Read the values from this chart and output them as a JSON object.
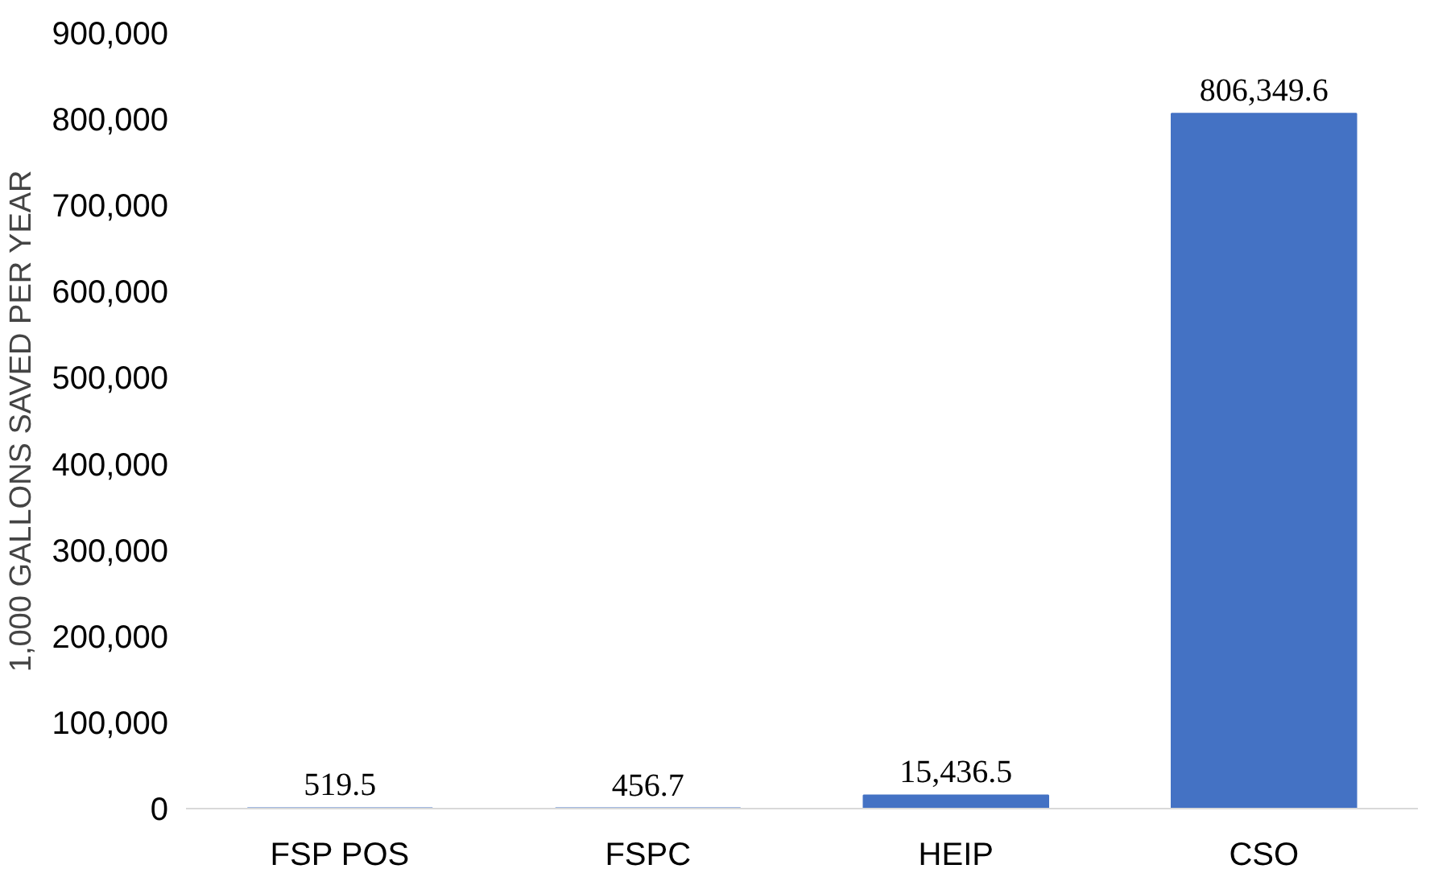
{
  "chart_data": {
    "type": "bar",
    "ylabel": "1,000 GALLONS SAVED PER YEAR",
    "categories": [
      "FSP POS",
      "FSPC",
      "HEIP",
      "CSO"
    ],
    "values": [
      519.5,
      456.7,
      15436.5,
      806349.6
    ],
    "value_labels": [
      "519.5",
      "456.7",
      "15,436.5",
      "806,349.6"
    ],
    "color": "#4472c4",
    "ylim": [
      0,
      900000
    ],
    "yticks": [
      {
        "value": 0,
        "label": "0"
      },
      {
        "value": 100000,
        "label": "100,000"
      },
      {
        "value": 200000,
        "label": "200,000"
      },
      {
        "value": 300000,
        "label": "300,000"
      },
      {
        "value": 400000,
        "label": "400,000"
      },
      {
        "value": 500000,
        "label": "500,000"
      },
      {
        "value": 600000,
        "label": "600,000"
      },
      {
        "value": 700000,
        "label": "700,000"
      },
      {
        "value": 800000,
        "label": "800,000"
      },
      {
        "value": 900000,
        "label": "900,000"
      }
    ],
    "grid": false
  }
}
